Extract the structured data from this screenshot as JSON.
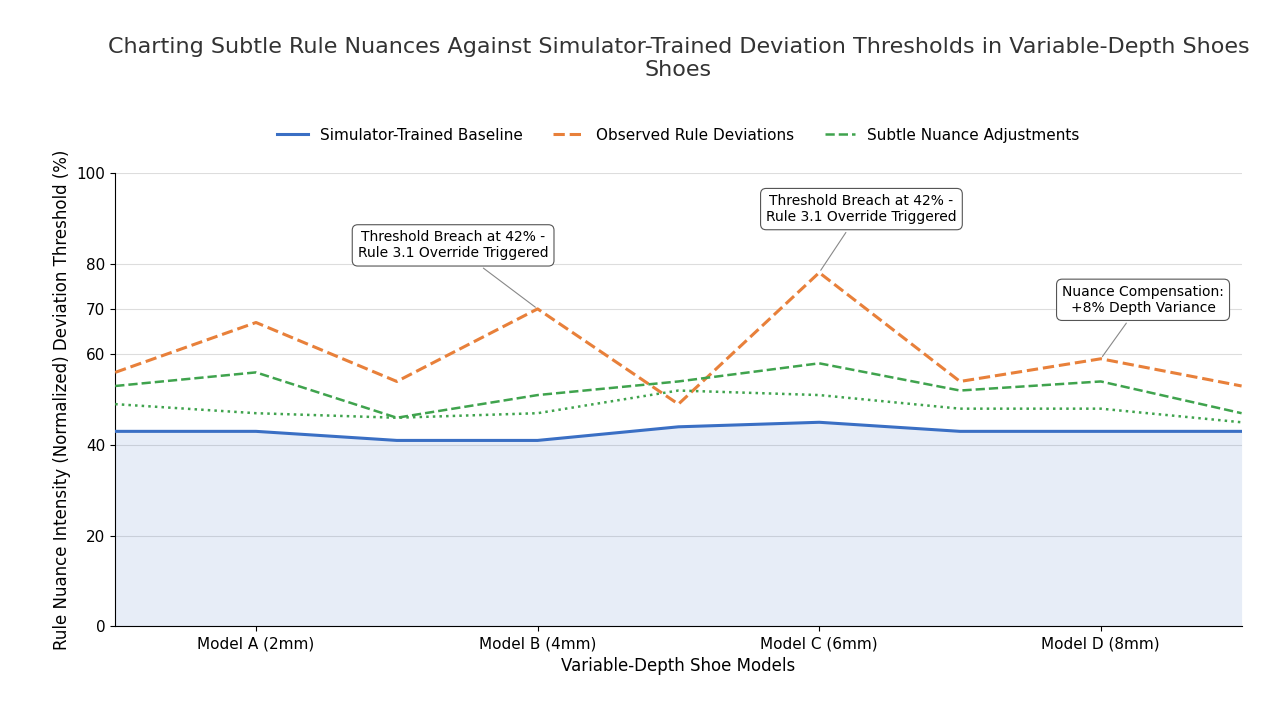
{
  "chart_data": {
    "type": "line",
    "title": "Charting Subtle Rule Nuances Against Simulator-Trained Deviation Thresholds in Variable-Depth Shoes Shoes",
    "x_label": "Variable-Depth Shoe Models",
    "y_label": "Rule Nuance Intensity (Normalized) Deviation Threshold (%)",
    "categories": [
      null,
      "Model A (2mm)",
      null,
      "Model B (4mm)",
      null,
      "Model C (6mm)",
      null,
      "Model D (8mm)",
      null
    ],
    "series": [
      {
        "name": "Simulator-Trained Baseline",
        "color": "#3a6fc4",
        "line_style": "solid",
        "values": [
          43,
          43,
          41,
          41,
          44,
          45,
          43,
          43,
          43
        ]
      },
      {
        "name": "Observed Rule Deviations",
        "color": "#e8803a",
        "line_style": "dashed",
        "values": [
          56,
          67,
          54,
          70,
          49,
          78,
          54,
          59,
          53
        ]
      },
      {
        "name": "Subtle Nuance Adjustments",
        "color": "#3fa34d",
        "line_style": "dashed",
        "values": [
          53,
          56,
          46,
          51,
          54,
          58,
          52,
          54,
          47
        ]
      },
      {
        "color": "#3fa34d",
        "line_style": "dotted",
        "values": [
          49,
          47,
          46,
          47,
          52,
          51,
          48,
          48,
          45
        ]
      }
    ],
    "ylim": [
      0,
      100
    ],
    "yticks": [
      0,
      20,
      40,
      60,
      70,
      80,
      100
    ],
    "grid": true,
    "legend": "upper center",
    "annotations": [
      "Threshold Breach at 42% -\nRule 3.1 Override Triggered",
      "Threshold Breach at 42% -\nRule 3.1 Override Triggered",
      "Nuance Compensation:\n+8% Depth Variance"
    ]
  }
}
